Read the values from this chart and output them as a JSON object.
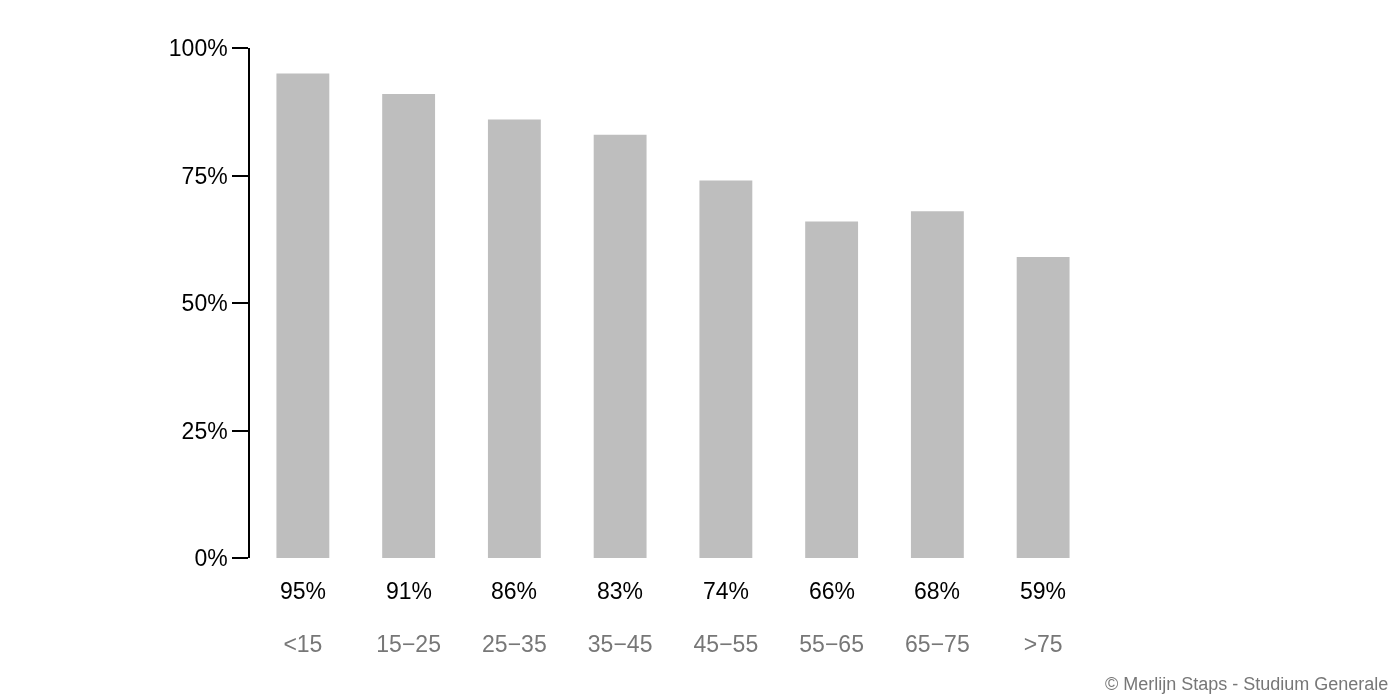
{
  "chart_data": {
    "type": "bar",
    "categories": [
      "<15",
      "15−25",
      "25−35",
      "35−45",
      "45−55",
      "55−65",
      "65−75",
      ">75"
    ],
    "values": [
      95,
      91,
      86,
      83,
      74,
      66,
      68,
      59
    ],
    "color": "#bebebe",
    "value_labels": [
      "95%",
      "91%",
      "86%",
      "83%",
      "74%",
      "66%",
      "68%",
      "59%"
    ],
    "ylim": [
      0,
      100
    ],
    "yticks": [
      {
        "value": 0,
        "label": "0%"
      },
      {
        "value": 25,
        "label": "25%"
      },
      {
        "value": 50,
        "label": "50%"
      },
      {
        "value": 75,
        "label": "75%"
      },
      {
        "value": 100,
        "label": "100%"
      }
    ],
    "grid": false,
    "annotations": [
      "© Merlijn Staps - Studium Generale"
    ]
  }
}
